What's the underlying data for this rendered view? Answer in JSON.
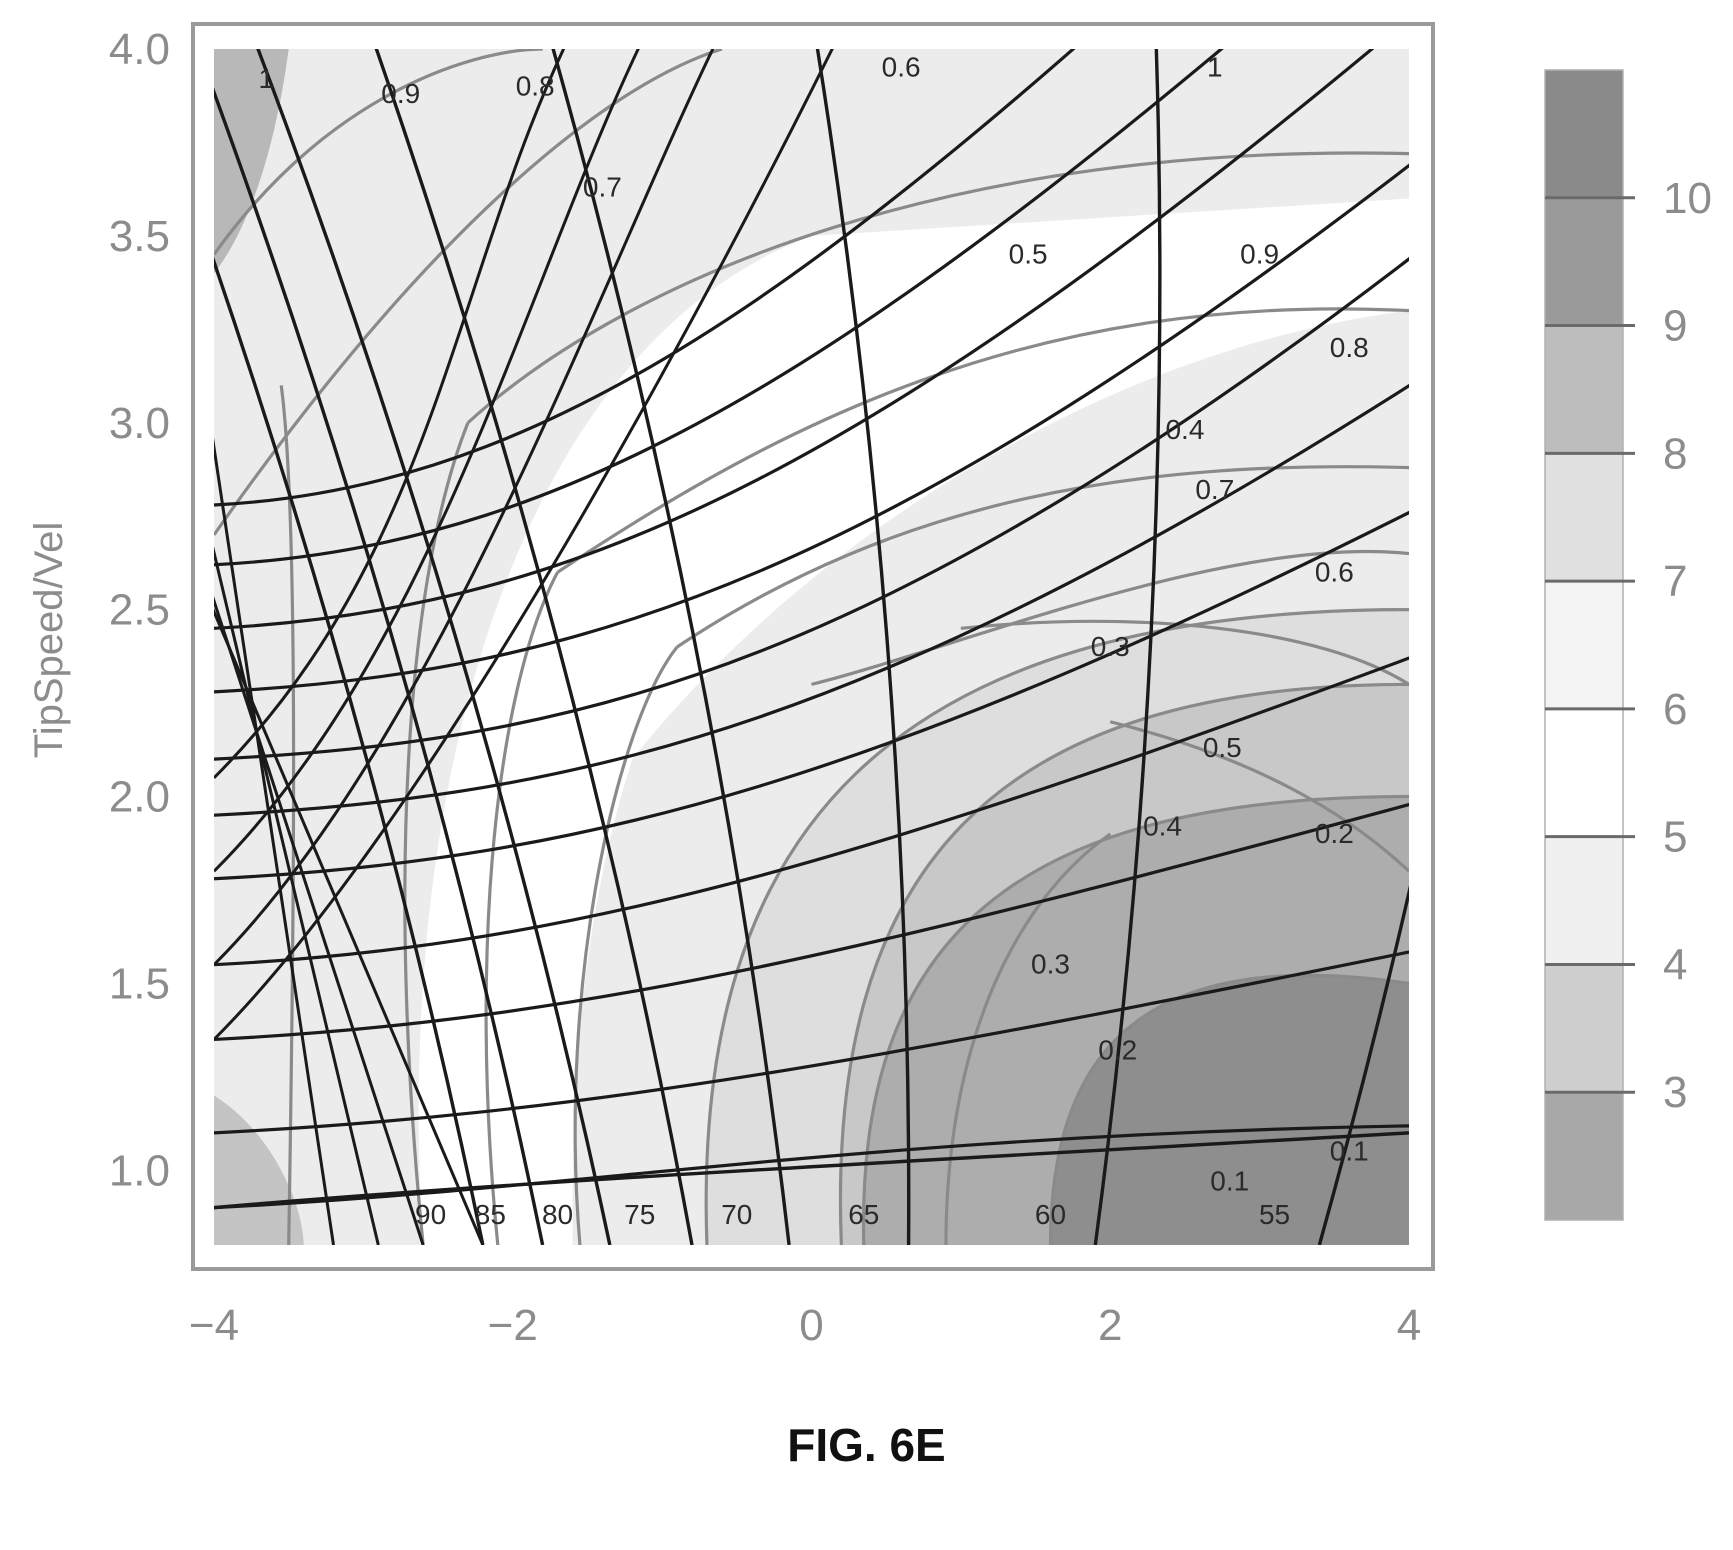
{
  "caption": "FIG. 6E",
  "chart_data": {
    "type": "contour",
    "title": "",
    "xlabel": "",
    "ylabel": "TipSpeed/Vel",
    "xlim": [
      -4,
      4
    ],
    "ylim": [
      0.8,
      4.0
    ],
    "x_ticks": [
      "−4",
      "−2",
      "0",
      "2",
      "4"
    ],
    "x_tick_values": [
      -4,
      -2,
      0,
      2,
      4
    ],
    "y_ticks": [
      "1.0",
      "1.5",
      "2.0",
      "2.5",
      "3.0",
      "3.5",
      "4.0"
    ],
    "y_tick_values": [
      1.0,
      1.5,
      2.0,
      2.5,
      3.0,
      3.5,
      4.0
    ],
    "grid": false,
    "colorbar": {
      "ticks": [
        "3",
        "4",
        "5",
        "6",
        "7",
        "8",
        "9",
        "10"
      ],
      "tick_values": [
        3,
        4,
        5,
        6,
        7,
        8,
        9,
        10
      ],
      "range": [
        2,
        11
      ],
      "band_colors": [
        "#a8a8a8",
        "#cfcfcf",
        "#f0f0f0",
        "#ffffff",
        "#f3f3f3",
        "#e0e0e0",
        "#bdbdbd",
        "#9a9a9a",
        "#8a8a8a"
      ]
    },
    "angle_contours": {
      "labels": [
        "90",
        "85",
        "80",
        "75",
        "70",
        "65",
        "60",
        "55"
      ],
      "values": [
        90,
        85,
        80,
        75,
        70,
        65,
        60,
        55
      ],
      "label_y": 0.88,
      "bottom_x": [
        -2.2,
        -1.8,
        -1.35,
        -0.8,
        -0.15,
        0.65,
        1.9,
        3.4
      ],
      "top_x": [
        -4.6,
        -4.2,
        -3.8,
        -3.0,
        -1.8,
        0.0,
        2.3,
        5.0
      ]
    },
    "flow_contours_gray": {
      "labels": [
        "1",
        "0.9",
        "0.8",
        "0.7",
        "0.9",
        "0.8",
        "0.7",
        "0.6",
        "0.5",
        "0.2"
      ],
      "label_positions": [
        [
          -3.65,
          3.92
        ],
        [
          -2.75,
          3.88
        ],
        [
          -1.85,
          3.9
        ],
        [
          -1.4,
          3.63
        ],
        [
          3.0,
          3.45
        ],
        [
          3.6,
          3.2
        ],
        [
          2.7,
          2.82
        ],
        [
          3.5,
          2.6
        ],
        [
          2.75,
          2.13
        ],
        [
          3.5,
          1.9
        ]
      ]
    },
    "power_contours_black": {
      "labels": [
        "0.6",
        "1",
        "0.5",
        "0.4",
        "0.3",
        "0.4",
        "0.3",
        "0.2",
        "0.1",
        "0.1"
      ],
      "label_positions": [
        [
          0.6,
          3.95
        ],
        [
          2.7,
          3.95
        ],
        [
          1.45,
          3.45
        ],
        [
          2.5,
          2.98
        ],
        [
          2.0,
          2.4
        ],
        [
          2.35,
          1.92
        ],
        [
          1.6,
          1.55
        ],
        [
          2.05,
          1.32
        ],
        [
          3.6,
          1.05
        ],
        [
          2.8,
          0.97
        ]
      ]
    }
  }
}
